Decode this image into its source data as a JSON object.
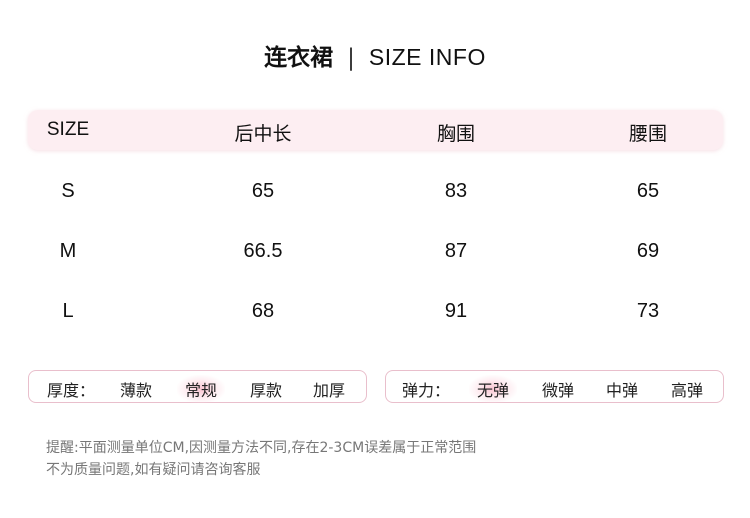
{
  "title": {
    "cn": "连衣裙",
    "separator": "|",
    "en": "SIZE INFO"
  },
  "table": {
    "headers": [
      "SIZE",
      "后中长",
      "胸围",
      "腰围"
    ],
    "rows": [
      [
        "S",
        "65",
        "83",
        "65"
      ],
      [
        "M",
        "66.5",
        "87",
        "69"
      ],
      [
        "L",
        "68",
        "91",
        "73"
      ]
    ]
  },
  "thickness": {
    "label": "厚度：",
    "options": [
      "薄款",
      "常规",
      "厚款",
      "加厚"
    ],
    "selected": "常规"
  },
  "elasticity": {
    "label": "弹力：",
    "options": [
      "无弹",
      "微弹",
      "中弹",
      "高弹"
    ],
    "selected": "无弹"
  },
  "notes": [
    "提醒:平面测量单位CM,因测量方法不同,存在2-3CM误差属于正常范围",
    "不为质量问题,如有疑问请咨询客服"
  ],
  "colors": {
    "header_bg": "#fdeef2",
    "border": "#e9bfcc",
    "highlight": "#fabecd"
  }
}
